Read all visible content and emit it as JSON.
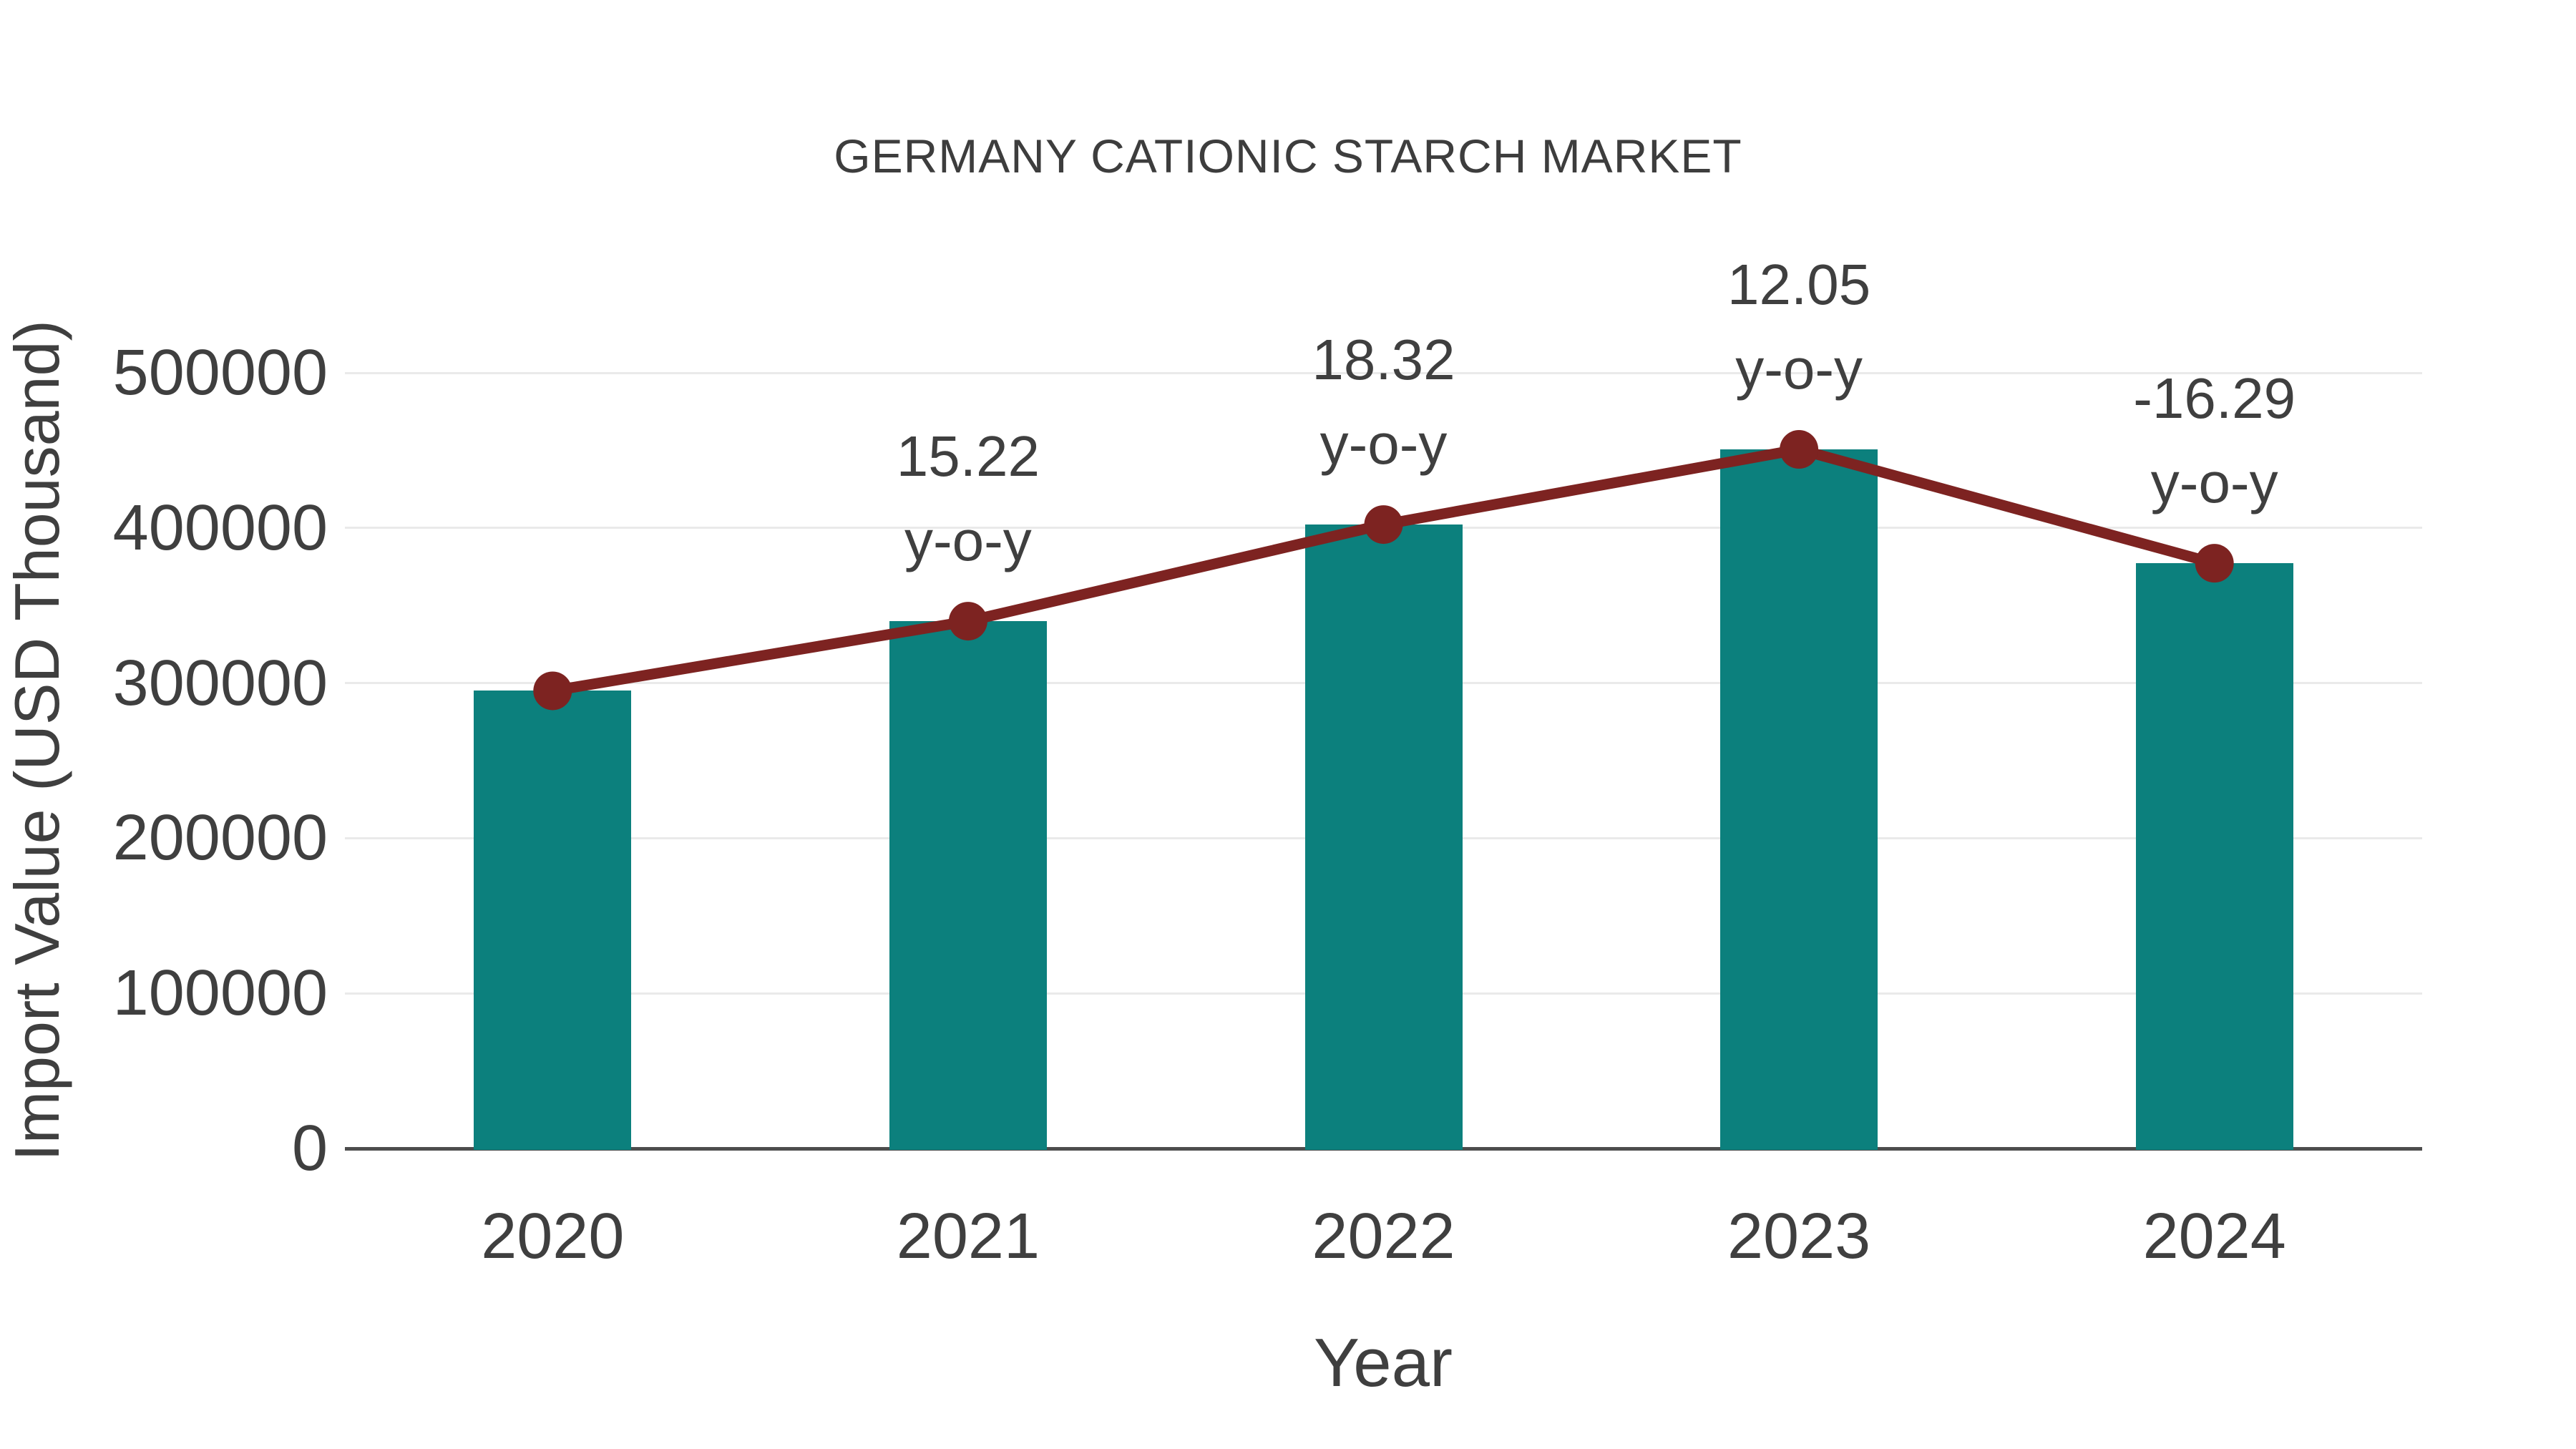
{
  "title": {
    "text": "GERMANY CATIONIC STARCH MARKET"
  },
  "colors": {
    "bar_fill": "#0C807D",
    "line_stroke": "#7D2321",
    "marker_fill": "#7D2321",
    "gridline": "#EAEAEA",
    "axis_line": "#4D4D4D",
    "text": "#3F3F3F",
    "background": "#FFFFFF"
  },
  "chart_data": {
    "type": "bar",
    "subtype": "bar-with-line-overlay",
    "title": "GERMANY CATIONIC STARCH MARKET",
    "xlabel": "Year",
    "ylabel": "Import Value (USD Thousand)",
    "categories": [
      "2020",
      "2021",
      "2022",
      "2023",
      "2024"
    ],
    "series": [
      {
        "name": "Import Value",
        "type": "bar",
        "color": "#0C807D",
        "values": [
          295000,
          339900,
          402170,
          450630,
          377220
        ]
      },
      {
        "name": "y-o-y trend line",
        "type": "line",
        "color": "#7D2321",
        "values": [
          295000,
          339900,
          402170,
          450630,
          377220
        ],
        "yoy_percent": [
          null,
          15.22,
          18.32,
          12.05,
          -16.29
        ]
      }
    ],
    "annotations": [
      {
        "category": "2021",
        "line1": "15.22",
        "line2": "y-o-y"
      },
      {
        "category": "2022",
        "line1": "18.32",
        "line2": "y-o-y"
      },
      {
        "category": "2023",
        "line1": "12.05",
        "line2": "y-o-y"
      },
      {
        "category": "2024",
        "line1": "-16.29",
        "line2": "y-o-y"
      }
    ],
    "ylim": [
      0,
      500000
    ],
    "yticks": [
      0,
      100000,
      200000,
      300000,
      400000,
      500000
    ],
    "grid": "horizontal",
    "legend": "none"
  }
}
